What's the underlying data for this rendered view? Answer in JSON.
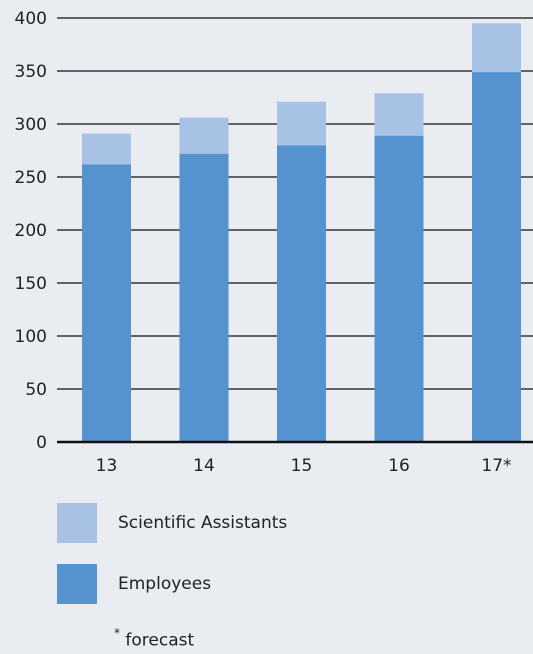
{
  "colors": {
    "background": "#e9edf1",
    "employees": "#5592d0",
    "scientific_assistants": "#a8c2e6",
    "gridline": "#111111"
  },
  "chart_data": {
    "type": "bar",
    "stacked": true,
    "categories": [
      "13",
      "14",
      "15",
      "16",
      "17*"
    ],
    "series": [
      {
        "name": "Employees",
        "values": [
          262,
          272,
          280,
          289,
          349
        ]
      },
      {
        "name": "Scientific Assistants",
        "values": [
          29,
          34,
          41,
          40,
          46
        ]
      }
    ],
    "ylim": [
      0,
      400
    ],
    "yticks": [
      0,
      50,
      100,
      150,
      200,
      250,
      300,
      350,
      400
    ],
    "grid": true,
    "legend_position": "bottom-left"
  },
  "legend": {
    "items": [
      {
        "label": "Scientific Assistants",
        "series": "Scientific Assistants"
      },
      {
        "label": "Employees",
        "series": "Employees"
      }
    ]
  },
  "footnote": {
    "marker": "*",
    "text": "forecast"
  }
}
